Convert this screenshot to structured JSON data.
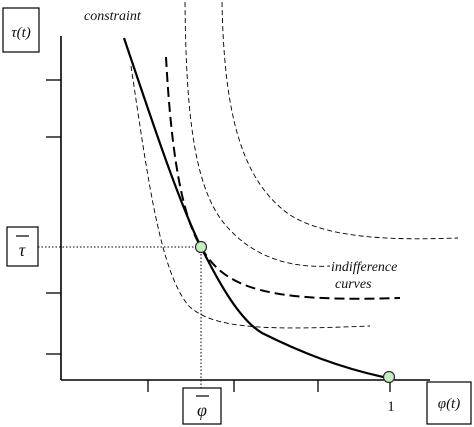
{
  "diagram": {
    "y_axis_label": "τ(t)",
    "x_axis_label": "φ(t)",
    "tau_bar_label": "τ",
    "phi_bar_label": "φ",
    "x_end_tick_label": "1",
    "constraint_label": "constraint",
    "indifference_label_line1": "indifference",
    "indifference_label_line2": "curves",
    "colors": {
      "axis": "#000000",
      "curve": "#000000",
      "marker_fill": "#c6edc0",
      "marker_stroke": "#2b2b2b"
    }
  }
}
